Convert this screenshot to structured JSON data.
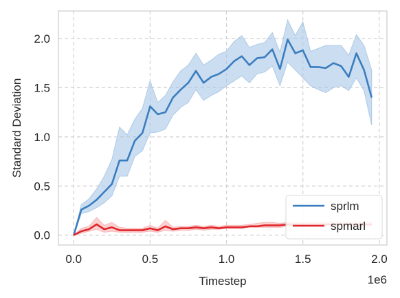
{
  "chart_data": {
    "type": "line",
    "xlabel": "Timestep",
    "ylabel": "Standard Deviation",
    "x_offset_label": "1e6",
    "xlim": [
      -0.1,
      2.05
    ],
    "ylim": [
      -0.1,
      2.28
    ],
    "xticks": [
      0.0,
      0.5,
      1.0,
      1.5,
      2.0
    ],
    "xtick_labels": [
      "0.0",
      "0.5",
      "1.0",
      "1.5",
      "2.0"
    ],
    "yticks": [
      0.0,
      0.5,
      1.0,
      1.5,
      2.0
    ],
    "ytick_labels": [
      "0.0",
      "0.5",
      "1.0",
      "1.5",
      "2.0"
    ],
    "grid": true,
    "legend_position": "lower-right",
    "x": [
      0.0,
      0.05,
      0.1,
      0.15,
      0.2,
      0.25,
      0.3,
      0.35,
      0.4,
      0.45,
      0.5,
      0.55,
      0.6,
      0.65,
      0.7,
      0.75,
      0.8,
      0.85,
      0.9,
      0.95,
      1.0,
      1.05,
      1.1,
      1.15,
      1.2,
      1.25,
      1.3,
      1.35,
      1.4,
      1.45,
      1.5,
      1.55,
      1.6,
      1.65,
      1.7,
      1.75,
      1.8,
      1.85,
      1.9,
      1.95
    ],
    "series": [
      {
        "name": "sprlm",
        "color": "#3a7dbf",
        "band_color": "#a9c6e6",
        "values": [
          0.0,
          0.26,
          0.3,
          0.36,
          0.44,
          0.52,
          0.76,
          0.76,
          0.96,
          1.04,
          1.31,
          1.23,
          1.25,
          1.4,
          1.48,
          1.55,
          1.67,
          1.55,
          1.61,
          1.64,
          1.69,
          1.77,
          1.82,
          1.73,
          1.8,
          1.81,
          1.89,
          1.69,
          1.99,
          1.85,
          1.88,
          1.71,
          1.71,
          1.7,
          1.75,
          1.72,
          1.61,
          1.85,
          1.68,
          1.4
        ],
        "lower": [
          0.0,
          0.22,
          0.24,
          0.28,
          0.33,
          0.4,
          0.6,
          0.6,
          0.8,
          0.86,
          1.04,
          1.05,
          1.08,
          1.22,
          1.3,
          1.35,
          1.48,
          1.37,
          1.42,
          1.46,
          1.52,
          1.57,
          1.62,
          1.55,
          1.64,
          1.66,
          1.72,
          1.52,
          1.76,
          1.68,
          1.6,
          1.52,
          1.48,
          1.45,
          1.5,
          1.52,
          1.47,
          1.6,
          1.47,
          1.12
        ],
        "upper": [
          0.0,
          0.31,
          0.37,
          0.47,
          0.6,
          0.77,
          1.1,
          1.02,
          1.18,
          1.29,
          1.57,
          1.35,
          1.42,
          1.56,
          1.67,
          1.73,
          1.85,
          1.73,
          1.78,
          1.84,
          1.87,
          1.97,
          2.03,
          1.91,
          1.94,
          1.96,
          2.06,
          1.86,
          2.19,
          2.03,
          2.17,
          1.87,
          1.9,
          1.93,
          1.93,
          1.93,
          1.83,
          2.04,
          1.93,
          1.68
        ]
      },
      {
        "name": "spmarl",
        "color": "#e0252b",
        "band_color": "#f6b3b1",
        "values": [
          0.0,
          0.04,
          0.06,
          0.11,
          0.06,
          0.08,
          0.05,
          0.05,
          0.05,
          0.05,
          0.07,
          0.05,
          0.09,
          0.06,
          0.07,
          0.07,
          0.08,
          0.07,
          0.08,
          0.07,
          0.08,
          0.08,
          0.08,
          0.09,
          0.09,
          0.1,
          0.1,
          0.1,
          0.11,
          0.11,
          0.11,
          0.11,
          0.11,
          0.11,
          0.11,
          0.11,
          0.11,
          0.11,
          0.11,
          0.11
        ],
        "lower": [
          0.0,
          0.02,
          0.04,
          0.06,
          0.03,
          0.04,
          0.03,
          0.03,
          0.03,
          0.03,
          0.04,
          0.03,
          0.05,
          0.04,
          0.05,
          0.05,
          0.06,
          0.05,
          0.06,
          0.06,
          0.07,
          0.07,
          0.07,
          0.08,
          0.08,
          0.08,
          0.08,
          0.08,
          0.09,
          0.09,
          0.09,
          0.09,
          0.09,
          0.09,
          0.09,
          0.09,
          0.09,
          0.09,
          0.09,
          0.09
        ],
        "upper": [
          0.0,
          0.07,
          0.09,
          0.18,
          0.1,
          0.13,
          0.08,
          0.07,
          0.07,
          0.07,
          0.1,
          0.07,
          0.15,
          0.08,
          0.09,
          0.09,
          0.1,
          0.09,
          0.1,
          0.09,
          0.1,
          0.1,
          0.1,
          0.11,
          0.12,
          0.13,
          0.13,
          0.12,
          0.13,
          0.13,
          0.13,
          0.13,
          0.13,
          0.13,
          0.13,
          0.13,
          0.13,
          0.13,
          0.13,
          0.13
        ]
      }
    ]
  }
}
